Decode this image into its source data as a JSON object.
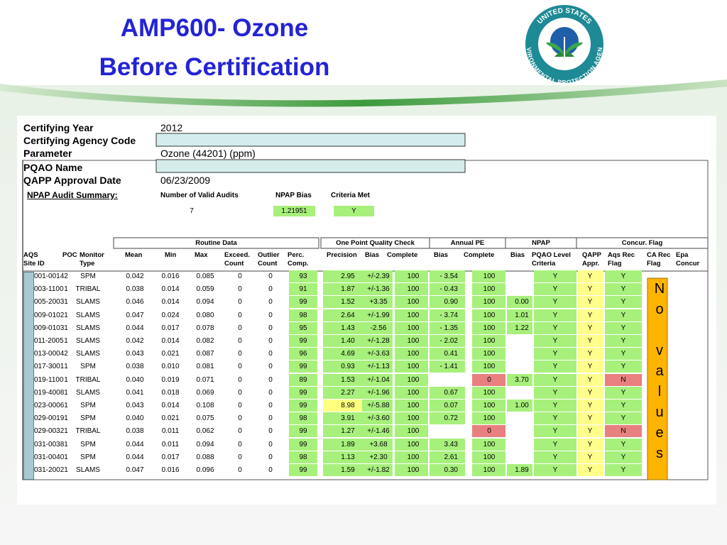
{
  "title": [
    "AMP600- Ozone",
    "Before Certification"
  ],
  "logo": {
    "top": "UNITED STATES",
    "bottom": "ENVIRONMENTAL PROTECTION AGENCY"
  },
  "info": [
    {
      "label": "Certifying Year",
      "value": "2012"
    },
    {
      "label": "Certifying Agency Code",
      "value": null
    },
    {
      "label": "Parameter",
      "value": "Ozone (44201)  (ppm)"
    },
    {
      "label": "PQAO Name",
      "value": null
    },
    {
      "label": "QAPP Approval Date",
      "value": "06/23/2009"
    }
  ],
  "npap_summary": {
    "title": "NPAP Audit Summary:",
    "headers": [
      "Number of Valid Audits",
      "NPAP Bias",
      "Criteria Met"
    ],
    "values": [
      "7",
      "1.21951",
      "Y"
    ]
  },
  "table": {
    "groups": [
      "Routine Data",
      "One Point Quality Check",
      "Annual PE",
      "NPAP",
      "Concur. Flag"
    ],
    "columns": [
      "AQS Site ID",
      "POC",
      "Monitor Type",
      "Mean",
      "Min",
      "Max",
      "Exceed. Count",
      "Outlier Count",
      "Perc. Comp.",
      "Precision",
      "Bias",
      "Complete",
      "Bias",
      "Complete",
      "Bias",
      "PQAO Level Criteria",
      "QAPP Appr.",
      "Aqs Rec Flag",
      "CA Rec Flag",
      "Epa Concur"
    ],
    "rows": [
      [
        "001-0014",
        "2",
        "SPM",
        "0.042",
        "0.016",
        "0.085",
        "0",
        "0",
        "93",
        "2.95",
        "+/-2.39",
        "100",
        "- 3.54",
        "100",
        null,
        "Y",
        "Y",
        "Y"
      ],
      [
        "003-1100",
        "1",
        "TRIBAL",
        "0.038",
        "0.014",
        "0.059",
        "0",
        "0",
        "91",
        "1.87",
        "+/-1.36",
        "100",
        "- 0.43",
        "100",
        null,
        "Y",
        "Y",
        "Y"
      ],
      [
        "005-2003",
        "1",
        "SLAMS",
        "0.046",
        "0.014",
        "0.094",
        "0",
        "0",
        "99",
        "1.52",
        "+3.35",
        "100",
        "0.90",
        "100",
        "0.00",
        "Y",
        "Y",
        "Y"
      ],
      [
        "009-0102",
        "1",
        "SLAMS",
        "0.047",
        "0.024",
        "0.080",
        "0",
        "0",
        "98",
        "2.64",
        "+/-1.99",
        "100",
        "- 3.74",
        "100",
        "1.01",
        "Y",
        "Y",
        "Y"
      ],
      [
        "009-0103",
        "1",
        "SLAMS",
        "0.044",
        "0.017",
        "0.078",
        "0",
        "0",
        "95",
        "1.43",
        "-2.56",
        "100",
        "- 1.35",
        "100",
        "1.22",
        "Y",
        "Y",
        "Y"
      ],
      [
        "011-2005",
        "1",
        "SLAMS",
        "0.042",
        "0.014",
        "0.082",
        "0",
        "0",
        "99",
        "1.40",
        "+/-1.28",
        "100",
        "- 2.02",
        "100",
        null,
        "Y",
        "Y",
        "Y"
      ],
      [
        "013-0004",
        "2",
        "SLAMS",
        "0.043",
        "0.021",
        "0.087",
        "0",
        "0",
        "96",
        "4.69",
        "+/-3.63",
        "100",
        "0.41",
        "100",
        null,
        "Y",
        "Y",
        "Y"
      ],
      [
        "017-3001",
        "1",
        "SPM",
        "0.038",
        "0.010",
        "0.081",
        "0",
        "0",
        "99",
        "0.93",
        "+/-1.13",
        "100",
        "- 1.41",
        "100",
        null,
        "Y",
        "Y",
        "Y"
      ],
      [
        "019-1100",
        "1",
        "TRIBAL",
        "0.040",
        "0.019",
        "0.071",
        "0",
        "0",
        "89",
        "1.53",
        "+/-1.04",
        "100",
        null,
        "0",
        "3.70",
        "Y",
        "Y",
        "N"
      ],
      [
        "019-4008",
        "1",
        "SLAMS",
        "0.041",
        "0.018",
        "0.069",
        "0",
        "0",
        "99",
        "2.27",
        "+/-1.96",
        "100",
        "0.67",
        "100",
        null,
        "Y",
        "Y",
        "Y"
      ],
      [
        "023-0006",
        "1",
        "SPM",
        "0.043",
        "0.014",
        "0.108",
        "0",
        "0",
        "99",
        "8.98",
        "+/-5.88",
        "100",
        "0.07",
        "100",
        "1.00",
        "Y",
        "Y",
        "Y"
      ],
      [
        "029-0019",
        "1",
        "SPM",
        "0.040",
        "0.021",
        "0.075",
        "0",
        "0",
        "98",
        "3.91",
        "+/-3.60",
        "100",
        "0.72",
        "100",
        null,
        "Y",
        "Y",
        "Y"
      ],
      [
        "029-0032",
        "1",
        "TRIBAL",
        "0.038",
        "0.011",
        "0.062",
        "0",
        "0",
        "99",
        "1.27",
        "+/-1.46",
        "100",
        null,
        "0",
        null,
        "Y",
        "Y",
        "N"
      ],
      [
        "031-0038",
        "1",
        "SPM",
        "0.044",
        "0.011",
        "0.094",
        "0",
        "0",
        "99",
        "1.89",
        "+3.68",
        "100",
        "3.43",
        "100",
        null,
        "Y",
        "Y",
        "Y"
      ],
      [
        "031-0040",
        "1",
        "SPM",
        "0.044",
        "0.017",
        "0.088",
        "0",
        "0",
        "98",
        "1.13",
        "+2.30",
        "100",
        "2.61",
        "100",
        null,
        "Y",
        "Y",
        "Y"
      ],
      [
        "031-2002",
        "1",
        "SLAMS",
        "0.047",
        "0.016",
        "0.096",
        "0",
        "0",
        "99",
        "1.59",
        "+/-1.82",
        "100",
        "0.30",
        "100",
        "1.89",
        "Y",
        "Y",
        "Y"
      ]
    ]
  },
  "annotation": "No values"
}
